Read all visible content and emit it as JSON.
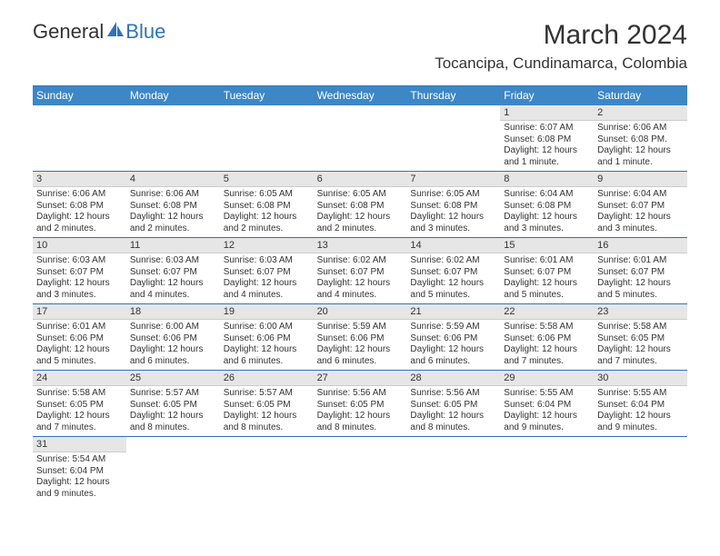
{
  "logo": {
    "text1": "General",
    "text2": "Blue"
  },
  "title": "March 2024",
  "location": "Tocancipa, Cundinamarca, Colombia",
  "colors": {
    "header_bar": "#3d87c7",
    "border": "#2e74b5",
    "daynum_bg": "#e6e6e6",
    "text": "#333333",
    "logo_blue": "#2e74b5"
  },
  "day_headers": [
    "Sunday",
    "Monday",
    "Tuesday",
    "Wednesday",
    "Thursday",
    "Friday",
    "Saturday"
  ],
  "weeks": [
    [
      {
        "n": "",
        "sr": "",
        "ss": "",
        "dl": ""
      },
      {
        "n": "",
        "sr": "",
        "ss": "",
        "dl": ""
      },
      {
        "n": "",
        "sr": "",
        "ss": "",
        "dl": ""
      },
      {
        "n": "",
        "sr": "",
        "ss": "",
        "dl": ""
      },
      {
        "n": "",
        "sr": "",
        "ss": "",
        "dl": ""
      },
      {
        "n": "1",
        "sr": "Sunrise: 6:07 AM",
        "ss": "Sunset: 6:08 PM",
        "dl": "Daylight: 12 hours and 1 minute."
      },
      {
        "n": "2",
        "sr": "Sunrise: 6:06 AM",
        "ss": "Sunset: 6:08 PM.",
        "dl": "Daylight: 12 hours and 1 minute."
      }
    ],
    [
      {
        "n": "3",
        "sr": "Sunrise: 6:06 AM",
        "ss": "Sunset: 6:08 PM",
        "dl": "Daylight: 12 hours and 2 minutes."
      },
      {
        "n": "4",
        "sr": "Sunrise: 6:06 AM",
        "ss": "Sunset: 6:08 PM",
        "dl": "Daylight: 12 hours and 2 minutes."
      },
      {
        "n": "5",
        "sr": "Sunrise: 6:05 AM",
        "ss": "Sunset: 6:08 PM",
        "dl": "Daylight: 12 hours and 2 minutes."
      },
      {
        "n": "6",
        "sr": "Sunrise: 6:05 AM",
        "ss": "Sunset: 6:08 PM",
        "dl": "Daylight: 12 hours and 2 minutes."
      },
      {
        "n": "7",
        "sr": "Sunrise: 6:05 AM",
        "ss": "Sunset: 6:08 PM",
        "dl": "Daylight: 12 hours and 3 minutes."
      },
      {
        "n": "8",
        "sr": "Sunrise: 6:04 AM",
        "ss": "Sunset: 6:08 PM",
        "dl": "Daylight: 12 hours and 3 minutes."
      },
      {
        "n": "9",
        "sr": "Sunrise: 6:04 AM",
        "ss": "Sunset: 6:07 PM",
        "dl": "Daylight: 12 hours and 3 minutes."
      }
    ],
    [
      {
        "n": "10",
        "sr": "Sunrise: 6:03 AM",
        "ss": "Sunset: 6:07 PM",
        "dl": "Daylight: 12 hours and 3 minutes."
      },
      {
        "n": "11",
        "sr": "Sunrise: 6:03 AM",
        "ss": "Sunset: 6:07 PM",
        "dl": "Daylight: 12 hours and 4 minutes."
      },
      {
        "n": "12",
        "sr": "Sunrise: 6:03 AM",
        "ss": "Sunset: 6:07 PM",
        "dl": "Daylight: 12 hours and 4 minutes."
      },
      {
        "n": "13",
        "sr": "Sunrise: 6:02 AM",
        "ss": "Sunset: 6:07 PM",
        "dl": "Daylight: 12 hours and 4 minutes."
      },
      {
        "n": "14",
        "sr": "Sunrise: 6:02 AM",
        "ss": "Sunset: 6:07 PM",
        "dl": "Daylight: 12 hours and 5 minutes."
      },
      {
        "n": "15",
        "sr": "Sunrise: 6:01 AM",
        "ss": "Sunset: 6:07 PM",
        "dl": "Daylight: 12 hours and 5 minutes."
      },
      {
        "n": "16",
        "sr": "Sunrise: 6:01 AM",
        "ss": "Sunset: 6:07 PM",
        "dl": "Daylight: 12 hours and 5 minutes."
      }
    ],
    [
      {
        "n": "17",
        "sr": "Sunrise: 6:01 AM",
        "ss": "Sunset: 6:06 PM",
        "dl": "Daylight: 12 hours and 5 minutes."
      },
      {
        "n": "18",
        "sr": "Sunrise: 6:00 AM",
        "ss": "Sunset: 6:06 PM",
        "dl": "Daylight: 12 hours and 6 minutes."
      },
      {
        "n": "19",
        "sr": "Sunrise: 6:00 AM",
        "ss": "Sunset: 6:06 PM",
        "dl": "Daylight: 12 hours and 6 minutes."
      },
      {
        "n": "20",
        "sr": "Sunrise: 5:59 AM",
        "ss": "Sunset: 6:06 PM",
        "dl": "Daylight: 12 hours and 6 minutes."
      },
      {
        "n": "21",
        "sr": "Sunrise: 5:59 AM",
        "ss": "Sunset: 6:06 PM",
        "dl": "Daylight: 12 hours and 6 minutes."
      },
      {
        "n": "22",
        "sr": "Sunrise: 5:58 AM",
        "ss": "Sunset: 6:06 PM",
        "dl": "Daylight: 12 hours and 7 minutes."
      },
      {
        "n": "23",
        "sr": "Sunrise: 5:58 AM",
        "ss": "Sunset: 6:05 PM",
        "dl": "Daylight: 12 hours and 7 minutes."
      }
    ],
    [
      {
        "n": "24",
        "sr": "Sunrise: 5:58 AM",
        "ss": "Sunset: 6:05 PM",
        "dl": "Daylight: 12 hours and 7 minutes."
      },
      {
        "n": "25",
        "sr": "Sunrise: 5:57 AM",
        "ss": "Sunset: 6:05 PM",
        "dl": "Daylight: 12 hours and 8 minutes."
      },
      {
        "n": "26",
        "sr": "Sunrise: 5:57 AM",
        "ss": "Sunset: 6:05 PM",
        "dl": "Daylight: 12 hours and 8 minutes."
      },
      {
        "n": "27",
        "sr": "Sunrise: 5:56 AM",
        "ss": "Sunset: 6:05 PM",
        "dl": "Daylight: 12 hours and 8 minutes."
      },
      {
        "n": "28",
        "sr": "Sunrise: 5:56 AM",
        "ss": "Sunset: 6:05 PM",
        "dl": "Daylight: 12 hours and 8 minutes."
      },
      {
        "n": "29",
        "sr": "Sunrise: 5:55 AM",
        "ss": "Sunset: 6:04 PM",
        "dl": "Daylight: 12 hours and 9 minutes."
      },
      {
        "n": "30",
        "sr": "Sunrise: 5:55 AM",
        "ss": "Sunset: 6:04 PM",
        "dl": "Daylight: 12 hours and 9 minutes."
      }
    ],
    [
      {
        "n": "31",
        "sr": "Sunrise: 5:54 AM",
        "ss": "Sunset: 6:04 PM",
        "dl": "Daylight: 12 hours and 9 minutes."
      },
      {
        "n": "",
        "sr": "",
        "ss": "",
        "dl": ""
      },
      {
        "n": "",
        "sr": "",
        "ss": "",
        "dl": ""
      },
      {
        "n": "",
        "sr": "",
        "ss": "",
        "dl": ""
      },
      {
        "n": "",
        "sr": "",
        "ss": "",
        "dl": ""
      },
      {
        "n": "",
        "sr": "",
        "ss": "",
        "dl": ""
      },
      {
        "n": "",
        "sr": "",
        "ss": "",
        "dl": ""
      }
    ]
  ]
}
